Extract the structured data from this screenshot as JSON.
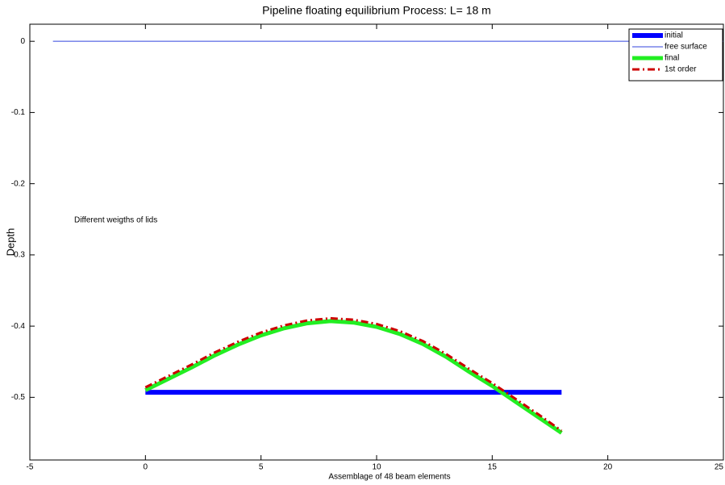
{
  "chart_data": {
    "type": "line",
    "title": "Pipeline floating equilibrium Process: L= 18 m",
    "x_label": "Assemblage of 48 beam elements",
    "y_label": "Depth",
    "annotation": "Different weigths of lids",
    "xlim": [
      -5,
      25
    ],
    "xticks": [
      -5,
      0,
      5,
      10,
      15,
      20,
      25
    ],
    "ylim": [
      -0.588,
      0.024
    ],
    "yticks": [
      -0.5,
      -0.4,
      -0.3,
      -0.2,
      -0.1,
      0
    ],
    "legend": "upper right",
    "series": [
      {
        "name": "initial",
        "color": "#0000ff",
        "width": 6,
        "dash": "solid",
        "x": [
          0,
          18
        ],
        "values": [
          -0.493,
          -0.493
        ]
      },
      {
        "name": "free surface",
        "color": "#3344dd",
        "width": 1,
        "dash": "solid",
        "x": [
          -4,
          25
        ],
        "values": [
          0,
          0
        ]
      },
      {
        "name": "final",
        "color": "#22ee22",
        "width": 5,
        "dash": "solid",
        "x": [
          0,
          1,
          2,
          3,
          4,
          5,
          6,
          7,
          8,
          9,
          10,
          11,
          12,
          13,
          14,
          15,
          16,
          17,
          18
        ],
        "values": [
          -0.49,
          -0.474,
          -0.458,
          -0.441,
          -0.426,
          -0.413,
          -0.403,
          -0.396,
          -0.393,
          -0.395,
          -0.401,
          -0.411,
          -0.425,
          -0.443,
          -0.464,
          -0.484,
          -0.506,
          -0.528,
          -0.55
        ]
      },
      {
        "name": "1st order",
        "color": "#cc0000",
        "width": 3,
        "dash": "dashdot",
        "x": [
          0,
          1,
          2,
          3,
          4,
          5,
          6,
          7,
          8,
          9,
          10,
          11,
          12,
          13,
          14,
          15,
          16,
          17,
          18
        ],
        "values": [
          -0.486,
          -0.47,
          -0.454,
          -0.437,
          -0.422,
          -0.409,
          -0.399,
          -0.392,
          -0.389,
          -0.391,
          -0.397,
          -0.407,
          -0.421,
          -0.439,
          -0.46,
          -0.48,
          -0.502,
          -0.524,
          -0.547
        ]
      }
    ]
  }
}
